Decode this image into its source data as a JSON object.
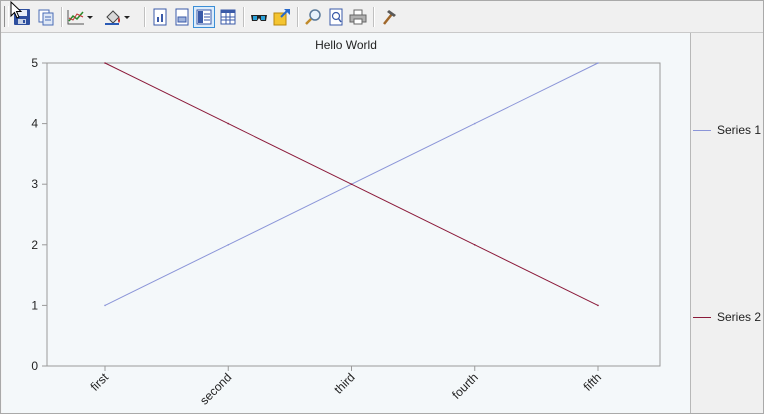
{
  "toolbar": {
    "buttons": [
      {
        "name": "save-icon"
      },
      {
        "name": "copy-icon"
      },
      {
        "name": "chart-type-icon",
        "dropdown": true
      },
      {
        "name": "fill-color-icon",
        "dropdown": true
      },
      {
        "name": "view-chart-icon"
      },
      {
        "name": "view-data-icon"
      },
      {
        "name": "view-split-icon",
        "active": true
      },
      {
        "name": "view-table-icon"
      },
      {
        "name": "3d-glasses-icon"
      },
      {
        "name": "export-icon"
      },
      {
        "name": "zoom-icon"
      },
      {
        "name": "print-preview-icon"
      },
      {
        "name": "print-icon"
      },
      {
        "name": "properties-hammer-icon"
      }
    ]
  },
  "chart_data": {
    "type": "line",
    "title": "Hello World",
    "categories": [
      "first",
      "second",
      "third",
      "fourth",
      "fifth"
    ],
    "series": [
      {
        "name": "Series 1",
        "values": [
          1,
          2,
          3,
          4,
          5
        ],
        "color": "#8b95d8"
      },
      {
        "name": "Series 2",
        "values": [
          5,
          4,
          3,
          2,
          1
        ],
        "color": "#8b1a3a"
      }
    ],
    "ylim": [
      0,
      5
    ],
    "yticks": [
      0,
      1,
      2,
      3,
      4,
      5
    ],
    "grid": false,
    "legend_position": "right"
  },
  "colors": {
    "plot_background": "#f4f8fa",
    "axis": "#9a9a9a",
    "toolbar_active": "#3b8ed6"
  }
}
